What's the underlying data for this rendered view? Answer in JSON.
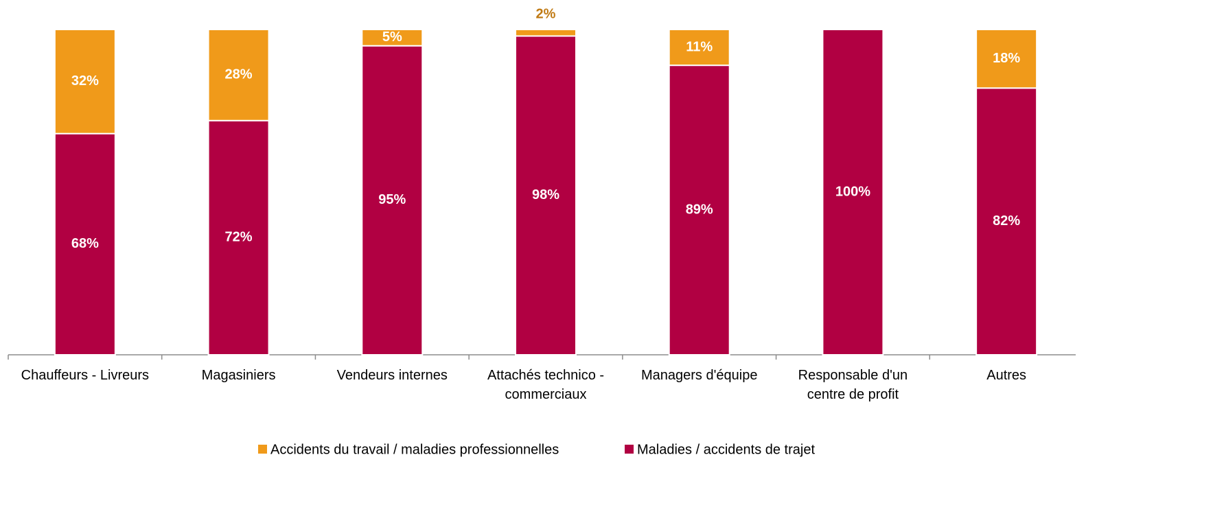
{
  "chart_data": {
    "type": "stacked_bar",
    "categories": [
      "Chauffeurs - Livreurs",
      "Magasiniers",
      "Vendeurs internes",
      "Attachés technico - commerciaux",
      "Managers d'équipe",
      "Responsable d'un centre de profit",
      "Autres"
    ],
    "series": [
      {
        "name": "Accidents du travail / maladies professionnelles",
        "color": "#f09a1a",
        "values": [
          32,
          28,
          5,
          2,
          11,
          0,
          18
        ],
        "value_labels": [
          "32%",
          "28%",
          "5%",
          "2%",
          "11%",
          null,
          "18%"
        ]
      },
      {
        "name": "Maladies / accidents de trajet",
        "color": "#b10042",
        "values": [
          68,
          72,
          95,
          98,
          89,
          100,
          82
        ],
        "value_labels": [
          "68%",
          "72%",
          "95%",
          "98%",
          "89%",
          "100%",
          "82%"
        ]
      }
    ],
    "ylim": [
      0,
      100
    ]
  }
}
